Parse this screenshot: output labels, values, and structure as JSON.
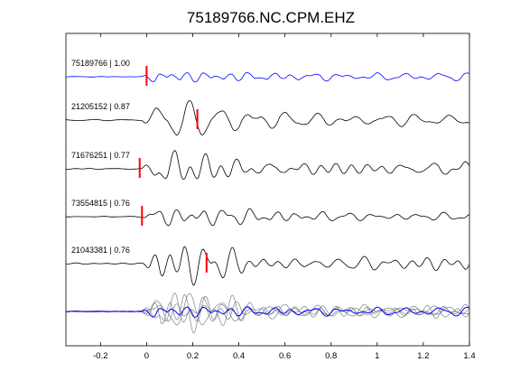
{
  "chart_data": {
    "type": "line",
    "title": "75189766.NC.CPM.EHZ",
    "xlabel": "",
    "ylabel": "",
    "xlim": [
      -0.35,
      1.4
    ],
    "x_ticks": [
      -0.2,
      0,
      0.2,
      0.4,
      0.6,
      0.8,
      1.0,
      1.2,
      1.4
    ],
    "x_tick_labels": [
      "-0.2",
      "0",
      "0.2",
      "0.4",
      "0.6",
      "0.8",
      "1",
      "1.2",
      "1.4"
    ],
    "grid": false,
    "colors": {
      "primary_trace": "#0000ff",
      "secondary_trace": "#000000",
      "overlay_trace": "#808080",
      "pick_marker": "#ff0000"
    },
    "traces": [
      {
        "label": "75189766 | 1.00",
        "id": "75189766",
        "cc": 1.0,
        "pick_time": 0.0,
        "color": "blue"
      },
      {
        "label": "21205152 | 0.87",
        "id": "21205152",
        "cc": 0.87,
        "pick_time": 0.22,
        "color": "black"
      },
      {
        "label": "71676251 | 0.77",
        "id": "71676251",
        "cc": 0.77,
        "pick_time": -0.03,
        "color": "black"
      },
      {
        "label": "73554815 | 0.76",
        "id": "73554815",
        "cc": 0.76,
        "pick_time": -0.02,
        "color": "black"
      },
      {
        "label": "21043381 | 0.76",
        "id": "21043381",
        "cc": 0.76,
        "pick_time": 0.26,
        "color": "black"
      }
    ],
    "stacked_overlay": true
  }
}
